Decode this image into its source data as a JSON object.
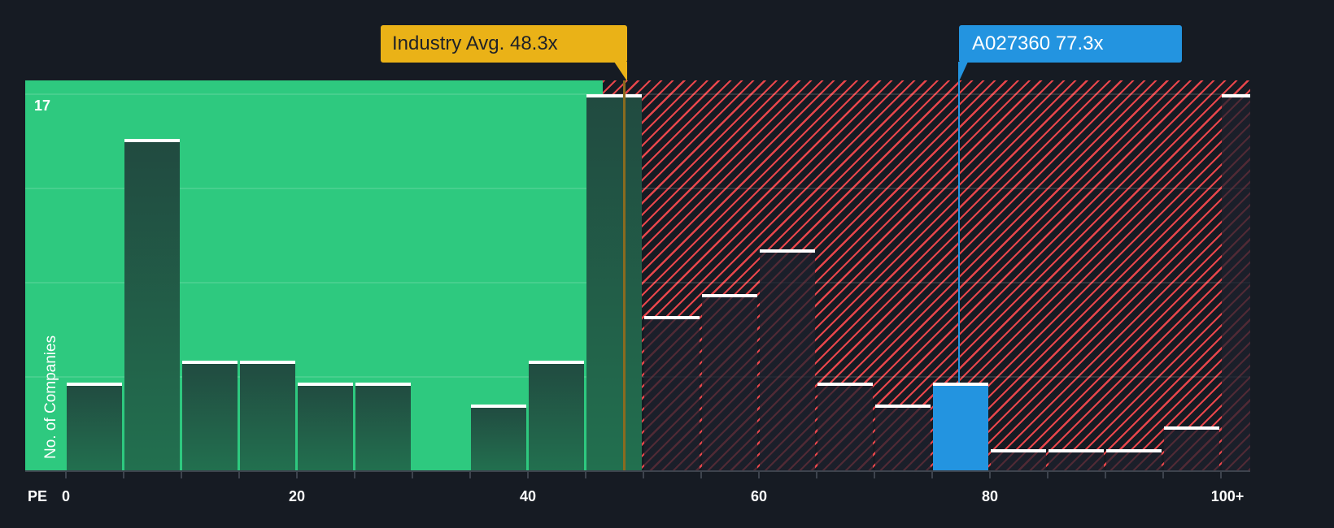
{
  "chart_data": {
    "type": "bar",
    "title": "",
    "xlabel": "PE",
    "ylabel": "No. of Companies",
    "x_ticks": [
      "0",
      "20",
      "40",
      "60",
      "80",
      "100+"
    ],
    "y_ticks_labeled": [
      "17"
    ],
    "ylim": [
      0,
      17
    ],
    "xlim": [
      0,
      102.5
    ],
    "bin_width": 5,
    "categories": [
      "0-5",
      "5-10",
      "10-15",
      "15-20",
      "20-25",
      "25-30",
      "30-35",
      "35-40",
      "40-45",
      "45-50",
      "50-55",
      "55-60",
      "60-65",
      "65-70",
      "70-75",
      "75-80",
      "80-85",
      "85-90",
      "90-95",
      "95-100",
      "100+"
    ],
    "values": [
      4,
      15,
      5,
      5,
      4,
      4,
      0,
      3,
      5,
      17,
      7,
      8,
      10,
      4,
      3,
      4,
      1,
      1,
      1,
      2,
      17
    ],
    "highlight_bin": "75-80",
    "industry_average": 48.3,
    "company_value": 77.3,
    "fair_zone_end": 46.5,
    "annotations": [
      {
        "label": "Industry Avg. 48.3x",
        "x": 48.3,
        "color": "#eab217"
      },
      {
        "label": "A027360 77.3x",
        "x": 77.3,
        "color": "#2394e0"
      }
    ],
    "grid": true,
    "colors": {
      "green_zone": "#2ec97f",
      "red_hatch": "#e8464b",
      "highlight": "#2394e0",
      "background": "#161b23"
    }
  },
  "labels": {
    "industry_callout": "Industry Avg. 48.3x",
    "company_callout": "A027360 77.3x",
    "y_axis_title": "No. of Companies",
    "y_max_label": "17",
    "x_axis_prefix": "PE"
  }
}
